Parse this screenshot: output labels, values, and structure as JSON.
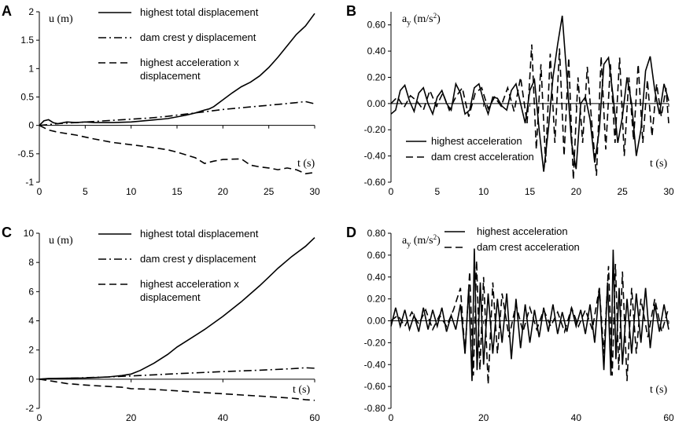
{
  "chart_data": [
    {
      "panel": "A",
      "type": "line",
      "ylabel_main": "u",
      "ylabel_unit": "(m)",
      "xlabel": "t (s)",
      "xlim": [
        0,
        30
      ],
      "ylim": [
        -1,
        2
      ],
      "xticks": [
        0,
        5,
        10,
        15,
        20,
        25,
        30
      ],
      "yticks": [
        -1,
        -0.5,
        0,
        0.5,
        1,
        1.5,
        2
      ],
      "ytick_labels": [
        "-1",
        "-0.5",
        "0",
        "0.5",
        "1",
        "1.5",
        "2"
      ],
      "series": [
        {
          "name": "highest total displacement",
          "style": "solid",
          "x": [
            0,
            0.5,
            1,
            1.5,
            2,
            3,
            4,
            5,
            6,
            8,
            10,
            12,
            14,
            16,
            17,
            18,
            18.5,
            19,
            20,
            21,
            22,
            23,
            24,
            25,
            26,
            27,
            28,
            29,
            30
          ],
          "y": [
            0,
            0.08,
            0.1,
            0.05,
            0.03,
            0.06,
            0.05,
            0.06,
            0.05,
            0.05,
            0.06,
            0.09,
            0.12,
            0.18,
            0.22,
            0.27,
            0.29,
            0.33,
            0.45,
            0.57,
            0.68,
            0.76,
            0.87,
            1.02,
            1.2,
            1.4,
            1.6,
            1.75,
            1.97
          ]
        },
        {
          "name": "dam crest y displacement",
          "style": "dashdot",
          "x": [
            0,
            2,
            4,
            6,
            8,
            10,
            12,
            14,
            16,
            18,
            20,
            22,
            24,
            26,
            28,
            29,
            30
          ],
          "y": [
            0,
            0.03,
            0.05,
            0.07,
            0.09,
            0.11,
            0.13,
            0.16,
            0.2,
            0.24,
            0.28,
            0.31,
            0.34,
            0.37,
            0.4,
            0.42,
            0.38
          ]
        },
        {
          "name": "highest acceleration x displacement",
          "style": "dashed",
          "x": [
            0,
            1,
            2,
            4,
            6,
            8,
            10,
            12,
            14,
            15,
            16,
            17,
            18,
            19,
            20,
            22,
            23,
            24,
            25,
            26,
            27,
            28,
            29,
            30
          ],
          "y": [
            0,
            -0.08,
            -0.12,
            -0.17,
            -0.24,
            -0.3,
            -0.34,
            -0.38,
            -0.43,
            -0.47,
            -0.52,
            -0.57,
            -0.67,
            -0.63,
            -0.6,
            -0.59,
            -0.7,
            -0.73,
            -0.75,
            -0.78,
            -0.75,
            -0.78,
            -0.85,
            -0.83
          ]
        }
      ],
      "legend": [
        "highest total displacement",
        "dam crest y displacement",
        "highest acceleration x displacement"
      ]
    },
    {
      "panel": "B",
      "type": "line",
      "ylabel_main": "a",
      "ylabel_sub": "y",
      "ylabel_unit": "(m/s",
      "ylabel_sup": "2",
      "ylabel_close": ")",
      "xlabel": "t (s)",
      "xlim": [
        0,
        30
      ],
      "ylim": [
        -0.6,
        0.7
      ],
      "xticks": [
        0,
        5,
        10,
        15,
        20,
        25,
        30
      ],
      "yticks": [
        -0.6,
        -0.4,
        -0.2,
        0,
        0.2,
        0.4,
        0.6
      ],
      "ytick_labels": [
        "-0.60",
        "-0.40",
        "-0.20",
        "0.00",
        "0.20",
        "0.40",
        "0.60"
      ],
      "series": [
        {
          "name": "highest acceleration",
          "style": "solid",
          "x": [
            0,
            0.5,
            1,
            1.5,
            2,
            2.5,
            3,
            3.5,
            4,
            4.5,
            5,
            5.5,
            6,
            6.5,
            7,
            7.5,
            8,
            8.5,
            9,
            9.5,
            10,
            10.5,
            11,
            11.5,
            12,
            12.5,
            13,
            13.5,
            14,
            14.5,
            15,
            15.5,
            16,
            16.5,
            17,
            17.5,
            18,
            18.5,
            19,
            19.5,
            20,
            20.5,
            21,
            21.5,
            22,
            22.5,
            23,
            23.5,
            24,
            24.5,
            25,
            25.5,
            26,
            26.5,
            27,
            27.5,
            28,
            28.5,
            29,
            29.5,
            30
          ],
          "y": [
            -0.08,
            -0.05,
            0.1,
            0.14,
            0.02,
            -0.06,
            0.08,
            0.12,
            0.0,
            -0.08,
            0.05,
            0.1,
            0.0,
            -0.05,
            0.15,
            0.08,
            -0.08,
            -0.05,
            0.12,
            0.15,
            0.02,
            -0.08,
            0.05,
            0.04,
            -0.02,
            -0.05,
            0.1,
            0.15,
            0.0,
            -0.15,
            0.1,
            0.18,
            -0.2,
            -0.52,
            -0.2,
            0.2,
            0.45,
            0.67,
            0.2,
            -0.3,
            -0.5,
            0.0,
            0.05,
            -0.12,
            -0.45,
            -0.2,
            0.3,
            0.35,
            0.05,
            -0.3,
            -0.1,
            0.2,
            0.0,
            -0.4,
            -0.2,
            0.25,
            0.36,
            0.1,
            -0.08,
            0.15,
            0.02
          ]
        },
        {
          "name": "dam crest acceleration",
          "style": "dashed",
          "x": [
            0,
            0.7,
            1.4,
            2.1,
            2.8,
            3.5,
            4.2,
            4.9,
            5.6,
            6.3,
            7,
            7.7,
            8.4,
            9.1,
            9.8,
            10.5,
            11.2,
            11.9,
            12.6,
            13.3,
            14,
            14.7,
            15.2,
            15.7,
            16.2,
            16.7,
            17.2,
            17.7,
            18.2,
            18.7,
            19.2,
            19.7,
            20.2,
            20.7,
            21.2,
            21.7,
            22.2,
            22.7,
            23.2,
            23.7,
            24.2,
            24.7,
            25.2,
            25.7,
            26.2,
            26.7,
            27.2,
            27.7,
            28.2,
            28.7,
            29.2,
            29.7,
            30
          ],
          "y": [
            0.0,
            0.05,
            -0.03,
            0.06,
            0.02,
            -0.05,
            0.1,
            -0.02,
            0.08,
            -0.05,
            0.05,
            0.12,
            -0.1,
            0.08,
            0.12,
            -0.04,
            0.05,
            -0.02,
            0.12,
            -0.06,
            0.2,
            -0.15,
            0.45,
            -0.35,
            0.3,
            -0.45,
            0.38,
            -0.3,
            0.42,
            -0.4,
            0.35,
            -0.58,
            0.2,
            -0.3,
            0.28,
            -0.15,
            -0.55,
            0.36,
            -0.35,
            0.3,
            -0.3,
            0.35,
            -0.4,
            0.2,
            -0.28,
            0.3,
            -0.3,
            0.18,
            -0.25,
            0.15,
            -0.1,
            0.12,
            -0.15
          ]
        }
      ],
      "legend": [
        "highest acceleration",
        "dam crest acceleration"
      ]
    },
    {
      "panel": "C",
      "type": "line",
      "ylabel_main": "u",
      "ylabel_unit": "(m)",
      "xlabel": "t (s)",
      "xlim": [
        0,
        60
      ],
      "ylim": [
        -2,
        10
      ],
      "xticks": [
        0,
        20,
        40,
        60
      ],
      "yticks": [
        -2,
        0,
        2,
        4,
        6,
        8,
        10
      ],
      "ytick_labels": [
        "-2",
        "0",
        "2",
        "4",
        "6",
        "8",
        "10"
      ],
      "series": [
        {
          "name": "highest total displacement",
          "style": "solid",
          "x": [
            0,
            2,
            5,
            10,
            15,
            18,
            20,
            22,
            25,
            28,
            30,
            33,
            36,
            40,
            44,
            48,
            50,
            52,
            55,
            58,
            60
          ],
          "y": [
            0,
            0.05,
            0.06,
            0.08,
            0.15,
            0.25,
            0.35,
            0.6,
            1.1,
            1.7,
            2.2,
            2.8,
            3.4,
            4.3,
            5.3,
            6.4,
            7.0,
            7.6,
            8.4,
            9.1,
            9.7
          ]
        },
        {
          "name": "dam crest y displacement",
          "style": "dashdot",
          "x": [
            0,
            5,
            10,
            15,
            20,
            25,
            30,
            35,
            40,
            45,
            50,
            55,
            58,
            60
          ],
          "y": [
            0,
            0.05,
            0.1,
            0.15,
            0.22,
            0.3,
            0.38,
            0.45,
            0.52,
            0.58,
            0.64,
            0.72,
            0.78,
            0.75
          ]
        },
        {
          "name": "highest acceleration x displacement",
          "style": "dashed",
          "x": [
            0,
            3,
            6,
            10,
            15,
            18,
            20,
            25,
            30,
            35,
            40,
            45,
            50,
            55,
            58,
            60
          ],
          "y": [
            0,
            -0.15,
            -0.3,
            -0.4,
            -0.5,
            -0.55,
            -0.65,
            -0.7,
            -0.8,
            -0.9,
            -1.0,
            -1.1,
            -1.2,
            -1.3,
            -1.4,
            -1.45
          ]
        }
      ],
      "legend": [
        "highest total displacement",
        "dam crest y displacement",
        "highest acceleration x displacement"
      ]
    },
    {
      "panel": "D",
      "type": "line",
      "ylabel_main": "a",
      "ylabel_sub": "y",
      "ylabel_unit": "(m/s",
      "ylabel_sup": "2",
      "ylabel_close": ")",
      "xlabel": "t (s)",
      "xlim": [
        0,
        60
      ],
      "ylim": [
        -0.8,
        0.8
      ],
      "xticks": [
        0,
        20,
        40,
        60
      ],
      "yticks": [
        -0.8,
        -0.6,
        -0.4,
        -0.2,
        0,
        0.2,
        0.4,
        0.6,
        0.8
      ],
      "ytick_labels": [
        "-0.80",
        "-0.60",
        "-0.40",
        "-0.20",
        "0.00",
        "0.20",
        "0.40",
        "0.60",
        "0.80"
      ],
      "series": [
        {
          "name": "highest acceleration",
          "style": "solid",
          "x": [
            0,
            1,
            2,
            3,
            4,
            5,
            6,
            7,
            8,
            9,
            10,
            11,
            12,
            13,
            14,
            15,
            16,
            16.8,
            17.5,
            18,
            18.6,
            19.3,
            20,
            21,
            22,
            23,
            24,
            25,
            26,
            27,
            28,
            29,
            30,
            31,
            32,
            33,
            34,
            35,
            36,
            37,
            38,
            39,
            40,
            41,
            42,
            43,
            44,
            45,
            46,
            46.8,
            47.5,
            48,
            48.6,
            49.3,
            50,
            51,
            52,
            53,
            54,
            55,
            56,
            57,
            58,
            59,
            60
          ],
          "y": [
            -0.05,
            0.12,
            -0.05,
            0.1,
            -0.08,
            0.05,
            -0.1,
            0.12,
            -0.08,
            0.1,
            -0.05,
            0.12,
            -0.1,
            0.05,
            -0.08,
            0.15,
            -0.3,
            0.3,
            -0.55,
            0.66,
            -0.45,
            0.35,
            -0.4,
            0.25,
            -0.3,
            0.2,
            -0.2,
            0.25,
            -0.35,
            0.2,
            -0.25,
            0.15,
            -0.2,
            0.1,
            -0.15,
            0.12,
            -0.1,
            0.15,
            -0.12,
            0.08,
            -0.1,
            0.12,
            -0.05,
            0.1,
            -0.12,
            0.15,
            -0.2,
            0.3,
            -0.45,
            0.35,
            -0.5,
            0.65,
            -0.35,
            0.3,
            -0.4,
            0.2,
            -0.3,
            0.25,
            -0.2,
            0.3,
            -0.25,
            0.15,
            -0.1,
            0.15,
            -0.08
          ]
        },
        {
          "name": "dam crest acceleration",
          "style": "dashed",
          "x": [
            0,
            1.5,
            3,
            4.5,
            6,
            7.5,
            9,
            10.5,
            12,
            13.5,
            15,
            16,
            17,
            17.8,
            18.5,
            19.2,
            20,
            21,
            22,
            23,
            24,
            25.5,
            27,
            28.5,
            30,
            31.5,
            33,
            34.5,
            36,
            37.5,
            39,
            40.5,
            42,
            43.5,
            45,
            46,
            47,
            47.8,
            48.5,
            49.2,
            50,
            51,
            52,
            53,
            54,
            55.5,
            57,
            58.5,
            60
          ],
          "y": [
            0.0,
            0.05,
            -0.05,
            0.08,
            -0.03,
            0.1,
            -0.08,
            0.05,
            -0.05,
            0.1,
            0.3,
            -0.3,
            0.45,
            -0.5,
            0.55,
            -0.45,
            0.4,
            -0.58,
            0.35,
            -0.3,
            0.25,
            -0.15,
            0.15,
            -0.1,
            0.12,
            -0.08,
            0.1,
            -0.05,
            0.08,
            -0.1,
            0.12,
            -0.05,
            0.1,
            -0.08,
            0.3,
            -0.3,
            0.5,
            -0.5,
            0.52,
            -0.45,
            0.45,
            -0.55,
            0.3,
            -0.3,
            0.2,
            -0.15,
            0.2,
            -0.1,
            0.12
          ]
        }
      ],
      "legend": [
        "highest acceleration",
        "dam crest acceleration"
      ]
    }
  ]
}
